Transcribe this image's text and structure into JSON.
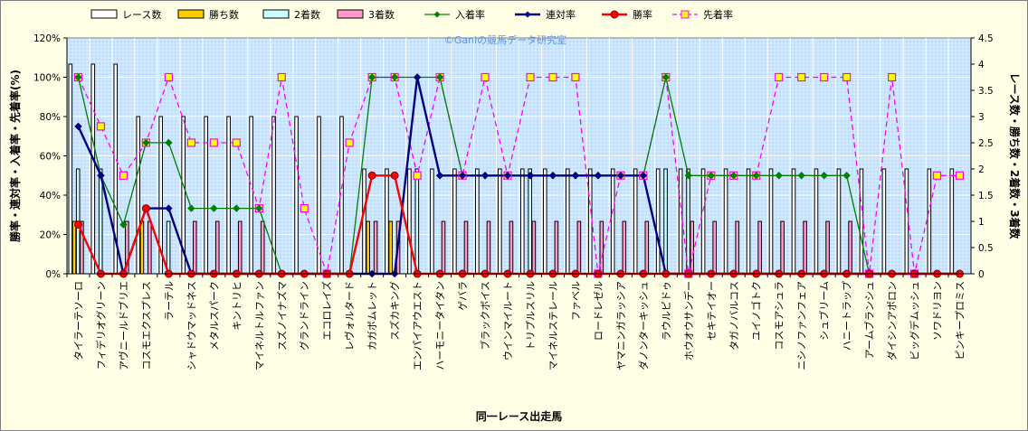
{
  "chart_data": {
    "type": "bar",
    "watermark": "©Ganiの競馬データ研究室",
    "xlabel": "同一レース出走馬",
    "ylabel_left": "勝率・連対率・入着率・先着率(%)",
    "ylabel_right": "レース数・勝ち数・2着数・3着数",
    "yticks_left": [
      "0%",
      "20%",
      "40%",
      "60%",
      "80%",
      "100%",
      "120%"
    ],
    "yticks_right": [
      "0",
      "0.5",
      "1",
      "1.5",
      "2",
      "2.5",
      "3",
      "3.5",
      "4",
      "4.5"
    ],
    "ylim_left": [
      0,
      120
    ],
    "ylim_right": [
      0,
      4.5
    ],
    "categories": [
      "タイラーテソーロ",
      "フィデリオグリーン",
      "アヴニールドブリエ",
      "コスモエクスプレス",
      "ラーテル",
      "シャドウマッドネス",
      "メタルスパーク",
      "キントリヒ",
      "マイネルトルファン",
      "スズノイナズマ",
      "グランドライン",
      "エコロレイズ",
      "レヴォルタード",
      "カガボムレット",
      "スズカキング",
      "エンパイアウエスト",
      "ハーモニータイタン",
      "ゲバラ",
      "ブラックボイス",
      "ウインマイルート",
      "トリプルスリル",
      "マイネルステレール",
      "ファベル",
      "ロードレゼル",
      "ヤマニンガラッシア",
      "ダノンターキッシュ",
      "ラウルピドゥ",
      "ホウオウサンデー",
      "セキテイオー",
      "タガノバルコス",
      "ユイノゴトク",
      "コスモアシュラ",
      "ニシノファンフェア",
      "シュブリーム",
      "ハニートラップ",
      "アームブランシュ",
      "ダイシンアポロン",
      "ビッグデムッシュ",
      "ソワドリヨン",
      "ピンキープロミス"
    ],
    "series": [
      {
        "name": "レース数",
        "axis": "right",
        "kind": "bar",
        "color": "#ffffff",
        "values": [
          4,
          4,
          4,
          3,
          3,
          3,
          3,
          3,
          3,
          3,
          3,
          3,
          3,
          2,
          2,
          2,
          2,
          2,
          2,
          2,
          2,
          2,
          2,
          2,
          2,
          2,
          2,
          2,
          2,
          2,
          2,
          2,
          2,
          2,
          2,
          2,
          2,
          2,
          2,
          2
        ]
      },
      {
        "name": "勝ち数",
        "axis": "right",
        "kind": "bar",
        "color": "#ffcc00",
        "values": [
          1,
          0,
          0,
          1,
          0,
          0,
          0,
          0,
          0,
          0,
          0,
          0,
          0,
          1,
          1,
          0,
          0,
          0,
          0,
          0,
          0,
          0,
          0,
          0,
          0,
          0,
          0,
          0,
          0,
          0,
          0,
          0,
          0,
          0,
          0,
          0,
          0,
          0,
          0,
          0
        ]
      },
      {
        "name": "2着数",
        "axis": "right",
        "kind": "bar",
        "color": "#ccffff",
        "values": [
          2,
          2,
          0,
          0,
          1,
          0,
          0,
          0,
          0,
          0,
          0,
          0,
          0,
          0,
          0,
          2,
          0,
          0,
          0,
          0,
          2,
          0,
          0,
          0,
          0,
          0,
          2,
          2,
          0,
          0,
          0,
          0,
          0,
          0,
          0,
          0,
          0,
          0,
          0,
          0
        ]
      },
      {
        "name": "3着数",
        "axis": "right",
        "kind": "bar",
        "color": "#ff99cc",
        "values": [
          1,
          0,
          1,
          1,
          0,
          1,
          1,
          1,
          1,
          0,
          0,
          0,
          0,
          1,
          1,
          0,
          1,
          1,
          1,
          1,
          1,
          1,
          1,
          1,
          1,
          1,
          0,
          1,
          1,
          1,
          1,
          1,
          1,
          1,
          1,
          0,
          0,
          0,
          0,
          0
        ]
      },
      {
        "name": "入着率",
        "axis": "left",
        "kind": "line",
        "color": "#008000",
        "marker": "diamond",
        "values": [
          100,
          50,
          25,
          66.7,
          66.7,
          33.3,
          33.3,
          33.3,
          33.3,
          0,
          0,
          0,
          0,
          100,
          100,
          100,
          100,
          50,
          50,
          50,
          50,
          50,
          50,
          50,
          50,
          50,
          100,
          50,
          50,
          50,
          50,
          50,
          50,
          50,
          50,
          0,
          0,
          0,
          0,
          0
        ]
      },
      {
        "name": "連対率",
        "axis": "left",
        "kind": "line",
        "color": "#000080",
        "marker": "diamond",
        "values": [
          75,
          50,
          0,
          33.3,
          33.3,
          0,
          0,
          0,
          0,
          0,
          0,
          0,
          0,
          0,
          0,
          100,
          50,
          50,
          50,
          50,
          50,
          50,
          50,
          50,
          50,
          50,
          0,
          0,
          0,
          0,
          0,
          0,
          0,
          0,
          0,
          0,
          0,
          0,
          0,
          0
        ]
      },
      {
        "name": "勝率",
        "axis": "left",
        "kind": "line",
        "color": "#ff0000",
        "marker": "circle",
        "values": [
          25,
          0,
          0,
          33.3,
          0,
          0,
          0,
          0,
          0,
          0,
          0,
          0,
          0,
          50,
          50,
          0,
          0,
          0,
          0,
          0,
          0,
          0,
          0,
          0,
          0,
          0,
          0,
          0,
          0,
          0,
          0,
          0,
          0,
          0,
          0,
          0,
          0,
          0,
          0,
          0
        ]
      },
      {
        "name": "先着率",
        "axis": "left",
        "kind": "line",
        "color": "#ff00ff",
        "marker": "square",
        "dashed": true,
        "values": [
          100,
          75,
          50,
          66.7,
          100,
          66.7,
          66.7,
          66.7,
          33.3,
          100,
          33.3,
          0,
          66.7,
          100,
          100,
          50,
          100,
          50,
          100,
          50,
          100,
          100,
          100,
          0,
          50,
          50,
          100,
          0,
          50,
          50,
          50,
          100,
          100,
          100,
          100,
          0,
          100,
          0,
          50,
          50
        ]
      }
    ]
  }
}
